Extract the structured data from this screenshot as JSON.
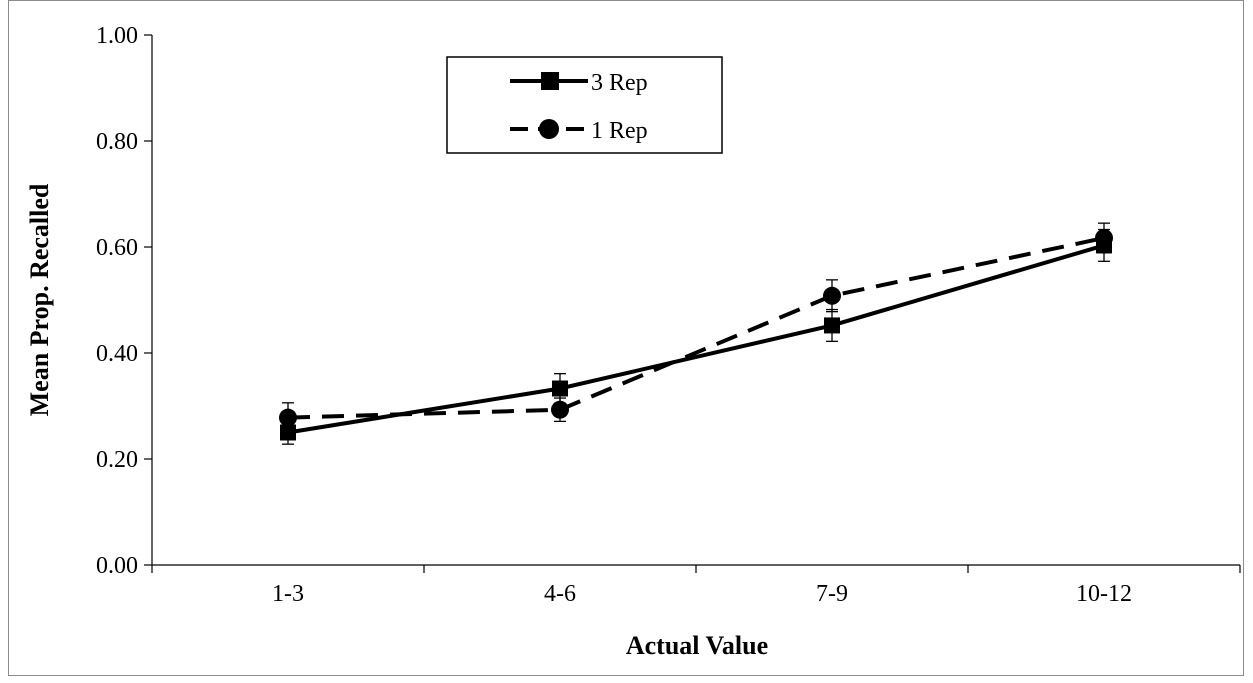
{
  "chart_data": {
    "type": "line",
    "title": "",
    "xlabel": "Actual Value",
    "ylabel": "Mean Prop. Recalled",
    "categories": [
      "1-3",
      "4-6",
      "7-9",
      "10-12"
    ],
    "ylim": [
      0,
      1
    ],
    "yticks": [
      "0.00",
      "0.20",
      "0.40",
      "0.60",
      "0.80",
      "1.00"
    ],
    "grid": false,
    "legend_position": "top-left",
    "series": [
      {
        "name": "3 Rep",
        "values": [
          0.25,
          0.333,
          0.452,
          0.603
        ],
        "errors": [
          0.022,
          0.028,
          0.03,
          0.03
        ],
        "marker": "square",
        "line_style": "solid",
        "color": "#000000"
      },
      {
        "name": "1 Rep",
        "values": [
          0.278,
          0.293,
          0.508,
          0.617
        ],
        "errors": [
          0.028,
          0.022,
          0.03,
          0.028
        ],
        "marker": "circle",
        "line_style": "dashed",
        "color": "#000000"
      }
    ]
  }
}
